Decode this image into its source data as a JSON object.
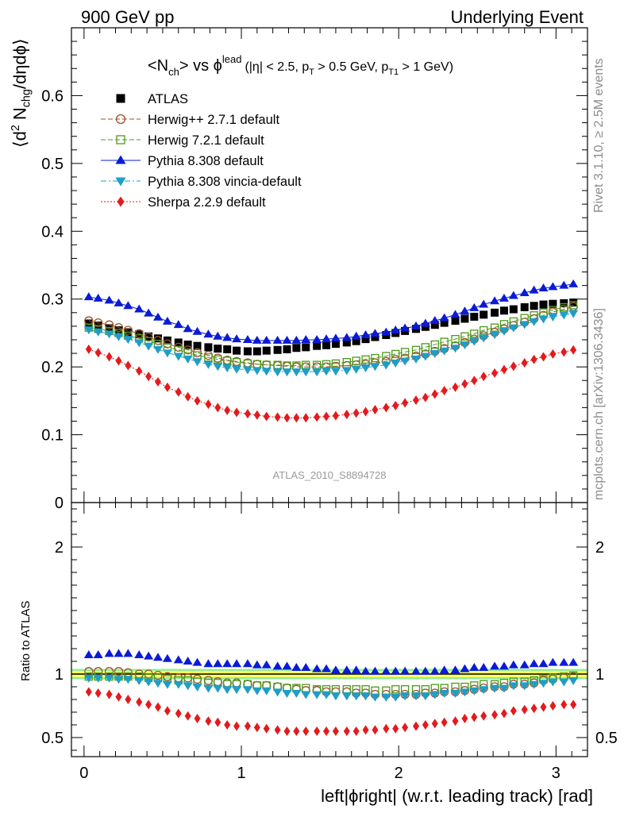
{
  "header": {
    "left": "900 GeV pp",
    "right": "Underlying Event"
  },
  "main_panel": {
    "title_main": "<N",
    "title_main_sub": "ch",
    "title_vs": "> vs ϕ",
    "title_sup": "lead",
    "title_cuts": "(|η| < 2.5, p",
    "title_cuts_sub1": "T",
    "title_cuts_mid": " > 0.5 GeV, p",
    "title_cuts_sub2": "T1",
    "title_cuts_end": " > 1 GeV)",
    "ylabel_pre": "⟨d",
    "ylabel_sup": "2",
    "ylabel_mid": " N",
    "ylabel_sub": "chg",
    "ylabel_post": "/dηdϕ⟩",
    "watermark": "ATLAS_2010_S8894728"
  },
  "ratio_panel": {
    "ylabel": "Ratio to ATLAS"
  },
  "xlabel": "left|ϕright| (w.r.t. leading track) [rad]",
  "side_labels": {
    "rivet": "Rivet 3.1.10, ≥ 2.5M events",
    "mcplots": "mcplots.cern.ch [arXiv:1306.3436]"
  },
  "chart_data": [
    {
      "type": "scatter",
      "panel": "main",
      "xlim": [
        -0.08,
        3.2
      ],
      "ylim": [
        0,
        0.7
      ],
      "xticks": [
        0,
        1,
        2,
        3
      ],
      "yticks": [
        0,
        0.1,
        0.2,
        0.3,
        0.4,
        0.5,
        0.6
      ],
      "ytick_labels": [
        "0",
        "0.1",
        "0.2",
        "0.3",
        "0.4",
        "0.5",
        "0.6"
      ],
      "grid": false,
      "legend_position": "top-left",
      "x": [
        0.03,
        0.09,
        0.16,
        0.22,
        0.28,
        0.35,
        0.41,
        0.47,
        0.53,
        0.6,
        0.66,
        0.72,
        0.79,
        0.85,
        0.91,
        0.97,
        1.04,
        1.1,
        1.16,
        1.23,
        1.29,
        1.35,
        1.41,
        1.48,
        1.54,
        1.6,
        1.67,
        1.73,
        1.79,
        1.85,
        1.92,
        1.98,
        2.04,
        2.11,
        2.17,
        2.23,
        2.29,
        2.36,
        2.42,
        2.48,
        2.54,
        2.61,
        2.67,
        2.73,
        2.8,
        2.86,
        2.92,
        2.98,
        3.05,
        3.11
      ],
      "series": [
        {
          "name": "ATLAS",
          "color": "#000000",
          "marker": "square-filled",
          "line": "none",
          "values": [
            0.264,
            0.261,
            0.257,
            0.254,
            0.251,
            0.248,
            0.245,
            0.242,
            0.239,
            0.236,
            0.233,
            0.231,
            0.229,
            0.227,
            0.226,
            0.224,
            0.223,
            0.223,
            0.224,
            0.225,
            0.226,
            0.228,
            0.229,
            0.231,
            0.232,
            0.234,
            0.236,
            0.238,
            0.241,
            0.244,
            0.247,
            0.25,
            0.253,
            0.256,
            0.259,
            0.262,
            0.265,
            0.268,
            0.271,
            0.274,
            0.277,
            0.28,
            0.283,
            0.285,
            0.288,
            0.29,
            0.292,
            0.293,
            0.294,
            0.295
          ]
        },
        {
          "name": "Herwig++ 2.7.1 default",
          "color": "#a0522d",
          "marker": "circle-open",
          "line": "dashed",
          "values": [
            0.268,
            0.265,
            0.262,
            0.258,
            0.254,
            0.249,
            0.244,
            0.239,
            0.234,
            0.229,
            0.225,
            0.221,
            0.217,
            0.213,
            0.21,
            0.208,
            0.206,
            0.204,
            0.203,
            0.202,
            0.201,
            0.2,
            0.2,
            0.2,
            0.2,
            0.201,
            0.202,
            0.203,
            0.204,
            0.206,
            0.208,
            0.211,
            0.213,
            0.216,
            0.219,
            0.223,
            0.227,
            0.231,
            0.236,
            0.241,
            0.246,
            0.251,
            0.256,
            0.261,
            0.266,
            0.271,
            0.276,
            0.281,
            0.285,
            0.289
          ]
        },
        {
          "name": "Herwig 7.2.1 default",
          "color": "#4d9a1a",
          "marker": "square-open",
          "line": "dashed",
          "values": [
            0.258,
            0.256,
            0.253,
            0.25,
            0.246,
            0.242,
            0.238,
            0.234,
            0.229,
            0.225,
            0.221,
            0.217,
            0.214,
            0.211,
            0.209,
            0.207,
            0.205,
            0.204,
            0.203,
            0.203,
            0.202,
            0.202,
            0.203,
            0.203,
            0.204,
            0.205,
            0.207,
            0.209,
            0.211,
            0.213,
            0.216,
            0.219,
            0.222,
            0.225,
            0.229,
            0.233,
            0.237,
            0.241,
            0.245,
            0.249,
            0.254,
            0.258,
            0.263,
            0.267,
            0.272,
            0.276,
            0.28,
            0.284,
            0.288,
            0.291
          ]
        },
        {
          "name": "Pythia 8.308 default",
          "color": "#0a1bd6",
          "marker": "triangle-up-filled",
          "line": "solid",
          "values": [
            0.303,
            0.301,
            0.298,
            0.294,
            0.29,
            0.285,
            0.279,
            0.273,
            0.267,
            0.262,
            0.256,
            0.252,
            0.248,
            0.245,
            0.243,
            0.241,
            0.24,
            0.239,
            0.239,
            0.239,
            0.239,
            0.239,
            0.24,
            0.24,
            0.241,
            0.242,
            0.243,
            0.245,
            0.247,
            0.249,
            0.251,
            0.254,
            0.257,
            0.26,
            0.264,
            0.268,
            0.272,
            0.277,
            0.282,
            0.287,
            0.292,
            0.297,
            0.301,
            0.305,
            0.309,
            0.313,
            0.316,
            0.318,
            0.32,
            0.322
          ]
        },
        {
          "name": "Pythia 8.308 vincia-default",
          "color": "#1e9ec6",
          "marker": "triangle-down-filled",
          "line": "dashdot",
          "values": [
            0.255,
            0.252,
            0.249,
            0.245,
            0.241,
            0.236,
            0.231,
            0.226,
            0.221,
            0.216,
            0.212,
            0.208,
            0.204,
            0.201,
            0.199,
            0.197,
            0.196,
            0.195,
            0.194,
            0.193,
            0.193,
            0.193,
            0.193,
            0.193,
            0.194,
            0.194,
            0.195,
            0.197,
            0.199,
            0.201,
            0.203,
            0.206,
            0.209,
            0.212,
            0.216,
            0.22,
            0.224,
            0.228,
            0.233,
            0.238,
            0.243,
            0.248,
            0.253,
            0.258,
            0.263,
            0.267,
            0.271,
            0.274,
            0.277,
            0.279
          ]
        },
        {
          "name": "Sherpa 2.2.9 default",
          "color": "#e41a1c",
          "marker": "diamond-filled",
          "line": "dotted",
          "values": [
            0.226,
            0.221,
            0.215,
            0.209,
            0.202,
            0.194,
            0.186,
            0.178,
            0.17,
            0.163,
            0.156,
            0.15,
            0.145,
            0.14,
            0.136,
            0.133,
            0.131,
            0.129,
            0.127,
            0.126,
            0.125,
            0.125,
            0.125,
            0.126,
            0.127,
            0.128,
            0.13,
            0.132,
            0.134,
            0.137,
            0.14,
            0.143,
            0.147,
            0.151,
            0.155,
            0.16,
            0.165,
            0.17,
            0.175,
            0.18,
            0.186,
            0.191,
            0.196,
            0.201,
            0.206,
            0.211,
            0.215,
            0.219,
            0.222,
            0.225
          ]
        }
      ]
    },
    {
      "type": "scatter",
      "panel": "ratio",
      "xlim": [
        -0.08,
        3.2
      ],
      "ylim": [
        0.35,
        2.35
      ],
      "xticks": [
        0,
        1,
        2,
        3
      ],
      "xtick_labels": [
        "0",
        "1",
        "2",
        "3"
      ],
      "yticks": [
        0.5,
        1,
        2
      ],
      "ytick_labels": [
        "0.5",
        "1",
        "2"
      ],
      "reference_band": {
        "lower": 0.96,
        "upper": 1.04,
        "inner_color": "#ffff66",
        "outer_color": "#90ee90"
      },
      "x": [
        0.03,
        0.09,
        0.16,
        0.22,
        0.28,
        0.35,
        0.41,
        0.47,
        0.53,
        0.6,
        0.66,
        0.72,
        0.79,
        0.85,
        0.91,
        0.97,
        1.04,
        1.1,
        1.16,
        1.23,
        1.29,
        1.35,
        1.41,
        1.48,
        1.54,
        1.6,
        1.67,
        1.73,
        1.79,
        1.85,
        1.92,
        1.98,
        2.04,
        2.11,
        2.17,
        2.23,
        2.29,
        2.36,
        2.42,
        2.48,
        2.54,
        2.61,
        2.67,
        2.73,
        2.8,
        2.86,
        2.92,
        2.98,
        3.05,
        3.11
      ],
      "series": [
        {
          "name": "Herwig++ 2.7.1 default",
          "values": [
            1.02,
            1.02,
            1.02,
            1.02,
            1.01,
            1.0,
            1.0,
            0.99,
            0.98,
            0.97,
            0.97,
            0.96,
            0.95,
            0.94,
            0.93,
            0.93,
            0.92,
            0.91,
            0.91,
            0.9,
            0.89,
            0.88,
            0.87,
            0.87,
            0.86,
            0.86,
            0.86,
            0.85,
            0.85,
            0.84,
            0.84,
            0.84,
            0.84,
            0.84,
            0.85,
            0.85,
            0.86,
            0.86,
            0.87,
            0.88,
            0.89,
            0.9,
            0.9,
            0.92,
            0.92,
            0.93,
            0.95,
            0.96,
            0.97,
            0.98
          ]
        },
        {
          "name": "Herwig 7.2.1 default",
          "values": [
            0.98,
            0.98,
            0.98,
            0.98,
            0.98,
            0.98,
            0.97,
            0.97,
            0.96,
            0.95,
            0.95,
            0.94,
            0.93,
            0.93,
            0.92,
            0.92,
            0.92,
            0.91,
            0.91,
            0.9,
            0.89,
            0.89,
            0.89,
            0.88,
            0.88,
            0.88,
            0.88,
            0.88,
            0.88,
            0.87,
            0.87,
            0.88,
            0.88,
            0.88,
            0.88,
            0.89,
            0.89,
            0.9,
            0.9,
            0.91,
            0.92,
            0.92,
            0.93,
            0.94,
            0.94,
            0.95,
            0.96,
            0.97,
            0.98,
            0.99
          ]
        },
        {
          "name": "Pythia 8.308 default",
          "values": [
            1.15,
            1.15,
            1.16,
            1.16,
            1.16,
            1.15,
            1.14,
            1.13,
            1.12,
            1.11,
            1.1,
            1.09,
            1.08,
            1.08,
            1.08,
            1.08,
            1.08,
            1.07,
            1.07,
            1.06,
            1.06,
            1.05,
            1.05,
            1.04,
            1.04,
            1.03,
            1.03,
            1.03,
            1.02,
            1.02,
            1.02,
            1.02,
            1.02,
            1.02,
            1.02,
            1.02,
            1.03,
            1.03,
            1.04,
            1.05,
            1.05,
            1.06,
            1.06,
            1.07,
            1.07,
            1.08,
            1.08,
            1.09,
            1.09,
            1.09
          ]
        },
        {
          "name": "Pythia 8.308 vincia-default",
          "values": [
            0.97,
            0.97,
            0.97,
            0.96,
            0.96,
            0.95,
            0.94,
            0.93,
            0.92,
            0.92,
            0.91,
            0.9,
            0.89,
            0.89,
            0.88,
            0.88,
            0.88,
            0.87,
            0.87,
            0.86,
            0.85,
            0.85,
            0.84,
            0.84,
            0.84,
            0.83,
            0.83,
            0.83,
            0.83,
            0.82,
            0.82,
            0.82,
            0.83,
            0.83,
            0.83,
            0.84,
            0.85,
            0.85,
            0.86,
            0.87,
            0.88,
            0.89,
            0.89,
            0.91,
            0.91,
            0.92,
            0.93,
            0.94,
            0.94,
            0.95
          ]
        },
        {
          "name": "Sherpa 2.2.9 default",
          "values": [
            0.86,
            0.85,
            0.84,
            0.82,
            0.8,
            0.78,
            0.76,
            0.74,
            0.71,
            0.69,
            0.67,
            0.65,
            0.63,
            0.62,
            0.6,
            0.59,
            0.59,
            0.58,
            0.57,
            0.56,
            0.55,
            0.55,
            0.55,
            0.55,
            0.55,
            0.55,
            0.55,
            0.55,
            0.56,
            0.56,
            0.57,
            0.57,
            0.58,
            0.59,
            0.6,
            0.61,
            0.62,
            0.63,
            0.65,
            0.66,
            0.67,
            0.68,
            0.69,
            0.71,
            0.72,
            0.73,
            0.74,
            0.75,
            0.76,
            0.76
          ]
        }
      ]
    }
  ]
}
